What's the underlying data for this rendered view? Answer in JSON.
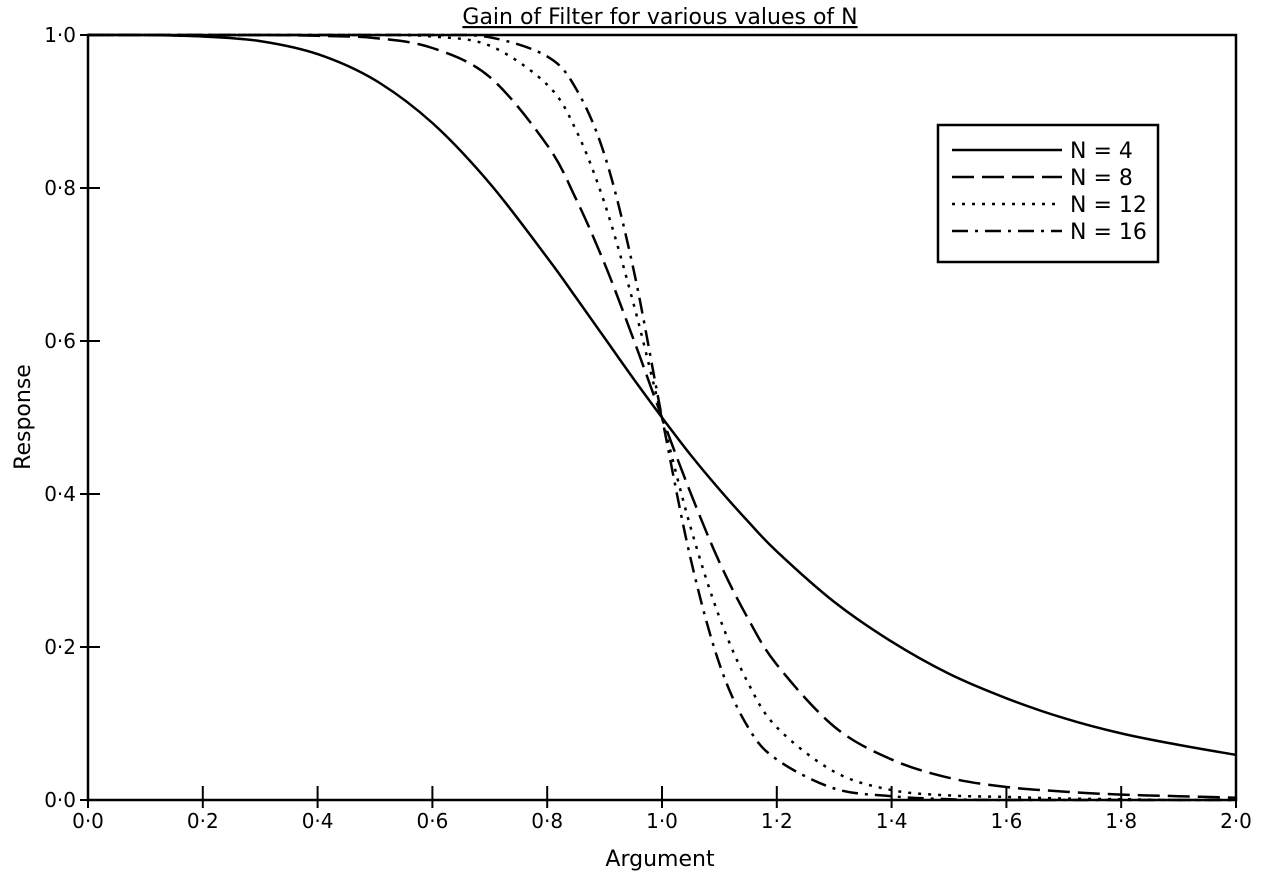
{
  "chart_data": {
    "type": "line",
    "title": "Gain of Filter for various values of N",
    "xlabel": "Argument",
    "ylabel": "Response",
    "xlim": [
      0.0,
      2.0
    ],
    "ylim": [
      0.0,
      1.0
    ],
    "grid": false,
    "legend_position": "top-right",
    "x_ticks": [
      0.0,
      0.2,
      0.4,
      0.6,
      0.8,
      1.0,
      1.2,
      1.4,
      1.6,
      1.8,
      2.0
    ],
    "x_tick_labels": [
      "0·0",
      "0·2",
      "0·4",
      "0·6",
      "0·8",
      "1·0",
      "1·2",
      "1·4",
      "1·6",
      "1·8",
      "2·0"
    ],
    "y_ticks": [
      0.0,
      0.2,
      0.4,
      0.6,
      0.8,
      1.0
    ],
    "y_tick_labels": [
      "0·0",
      "0·2",
      "0·4",
      "0·6",
      "0·8",
      "1·0"
    ],
    "x": [
      0.0,
      0.1,
      0.2,
      0.3,
      0.4,
      0.5,
      0.6,
      0.7,
      0.8,
      0.85,
      0.9,
      0.95,
      1.0,
      1.05,
      1.1,
      1.15,
      1.2,
      1.3,
      1.4,
      1.5,
      1.6,
      1.7,
      1.8,
      1.9,
      2.0
    ],
    "series": [
      {
        "name": "N = 4",
        "style": "solid",
        "values": [
          1.0,
          1.0,
          0.998,
          0.992,
          0.975,
          0.941,
          0.885,
          0.806,
          0.709,
          0.657,
          0.604,
          0.551,
          0.5,
          0.451,
          0.406,
          0.364,
          0.325,
          0.259,
          0.207,
          0.165,
          0.133,
          0.107,
          0.087,
          0.072,
          0.059
        ]
      },
      {
        "name": "N = 8",
        "style": "dashed",
        "values": [
          1.0,
          1.0,
          1.0,
          1.0,
          0.999,
          0.996,
          0.983,
          0.945,
          0.856,
          0.786,
          0.701,
          0.603,
          0.5,
          0.401,
          0.311,
          0.237,
          0.177,
          0.096,
          0.053,
          0.029,
          0.017,
          0.011,
          0.007,
          0.005,
          0.003
        ]
      },
      {
        "name": "N = 12",
        "style": "dotted",
        "values": [
          1.0,
          1.0,
          1.0,
          1.0,
          1.0,
          1.0,
          0.998,
          0.986,
          0.935,
          0.876,
          0.78,
          0.65,
          0.5,
          0.356,
          0.239,
          0.153,
          0.095,
          0.037,
          0.013,
          0.006,
          0.004,
          0.002,
          0.001,
          0.0,
          0.0
        ]
      },
      {
        "name": "N = 16",
        "style": "dash-dot",
        "values": [
          1.0,
          1.0,
          1.0,
          1.0,
          1.0,
          1.0,
          1.0,
          0.997,
          0.972,
          0.93,
          0.843,
          0.695,
          0.5,
          0.315,
          0.178,
          0.095,
          0.053,
          0.015,
          0.005,
          0.001,
          0.0,
          0.0,
          0.0,
          0.0,
          0.0
        ]
      }
    ]
  }
}
